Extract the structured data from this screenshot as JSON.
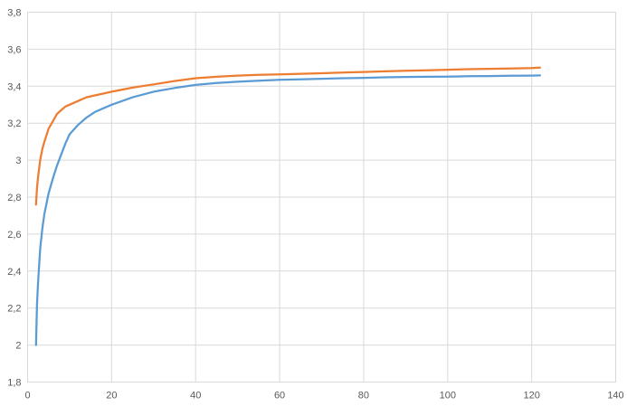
{
  "chart": {
    "title": "",
    "legend": "none"
  },
  "chart_data": {
    "type": "line",
    "title": "",
    "xlabel": "",
    "ylabel": "",
    "xlim": [
      0,
      140
    ],
    "ylim": [
      1.8,
      3.8
    ],
    "grid": true,
    "legend_position": "none",
    "x_ticks": [
      0,
      20,
      40,
      60,
      80,
      100,
      120,
      140
    ],
    "x_tick_labels": [
      "0",
      "20",
      "40",
      "60",
      "80",
      "100",
      "120",
      "140"
    ],
    "y_ticks": [
      1.8,
      2.0,
      2.2,
      2.4,
      2.6,
      2.8,
      3.0,
      3.2,
      3.4,
      3.6,
      3.8
    ],
    "y_tick_labels": [
      "1,8",
      "2",
      "2,2",
      "2,4",
      "2,6",
      "2,8",
      "3",
      "3,2",
      "3,4",
      "3,6",
      "3,8"
    ],
    "colors": {
      "gridline": "#D9D9D9",
      "plot_border": "#D9D9D9",
      "axis_label": "#595959",
      "background": "#FFFFFF"
    },
    "series": [
      {
        "color": "#5B9BD5",
        "points": [
          [
            2,
            2.0
          ],
          [
            2.25,
            2.22
          ],
          [
            2.5,
            2.34
          ],
          [
            3,
            2.52
          ],
          [
            3.5,
            2.63
          ],
          [
            4,
            2.71
          ],
          [
            5,
            2.82
          ],
          [
            6,
            2.9
          ],
          [
            7,
            2.97
          ],
          [
            8,
            3.03
          ],
          [
            9,
            3.09
          ],
          [
            10,
            3.14
          ],
          [
            12,
            3.19
          ],
          [
            14,
            3.23
          ],
          [
            16,
            3.26
          ],
          [
            18,
            3.28
          ],
          [
            20,
            3.3
          ],
          [
            25,
            3.34
          ],
          [
            30,
            3.37
          ],
          [
            35,
            3.39
          ],
          [
            40,
            3.407
          ],
          [
            45,
            3.417
          ],
          [
            50,
            3.424
          ],
          [
            55,
            3.43
          ],
          [
            60,
            3.434
          ],
          [
            65,
            3.437
          ],
          [
            70,
            3.44
          ],
          [
            75,
            3.443
          ],
          [
            80,
            3.445
          ],
          [
            85,
            3.448
          ],
          [
            90,
            3.45
          ],
          [
            95,
            3.451
          ],
          [
            100,
            3.452
          ],
          [
            105,
            3.454
          ],
          [
            110,
            3.455
          ],
          [
            115,
            3.456
          ],
          [
            120,
            3.457
          ],
          [
            122,
            3.458
          ]
        ]
      },
      {
        "color": "#ED7D31",
        "points": [
          [
            2,
            2.76
          ],
          [
            2.25,
            2.85
          ],
          [
            2.5,
            2.91
          ],
          [
            3,
            3.0
          ],
          [
            3.5,
            3.06
          ],
          [
            4,
            3.1
          ],
          [
            5,
            3.17
          ],
          [
            6,
            3.21
          ],
          [
            7,
            3.25
          ],
          [
            8,
            3.27
          ],
          [
            9,
            3.29
          ],
          [
            10,
            3.3
          ],
          [
            12,
            3.32
          ],
          [
            14,
            3.34
          ],
          [
            16,
            3.35
          ],
          [
            18,
            3.36
          ],
          [
            20,
            3.37
          ],
          [
            25,
            3.392
          ],
          [
            30,
            3.41
          ],
          [
            35,
            3.428
          ],
          [
            40,
            3.443
          ],
          [
            45,
            3.451
          ],
          [
            50,
            3.457
          ],
          [
            55,
            3.461
          ],
          [
            60,
            3.464
          ],
          [
            65,
            3.467
          ],
          [
            70,
            3.47
          ],
          [
            75,
            3.474
          ],
          [
            80,
            3.477
          ],
          [
            85,
            3.48
          ],
          [
            90,
            3.483
          ],
          [
            95,
            3.486
          ],
          [
            100,
            3.489
          ],
          [
            105,
            3.492
          ],
          [
            110,
            3.494
          ],
          [
            115,
            3.496
          ],
          [
            120,
            3.498
          ],
          [
            122,
            3.5
          ]
        ]
      }
    ]
  }
}
